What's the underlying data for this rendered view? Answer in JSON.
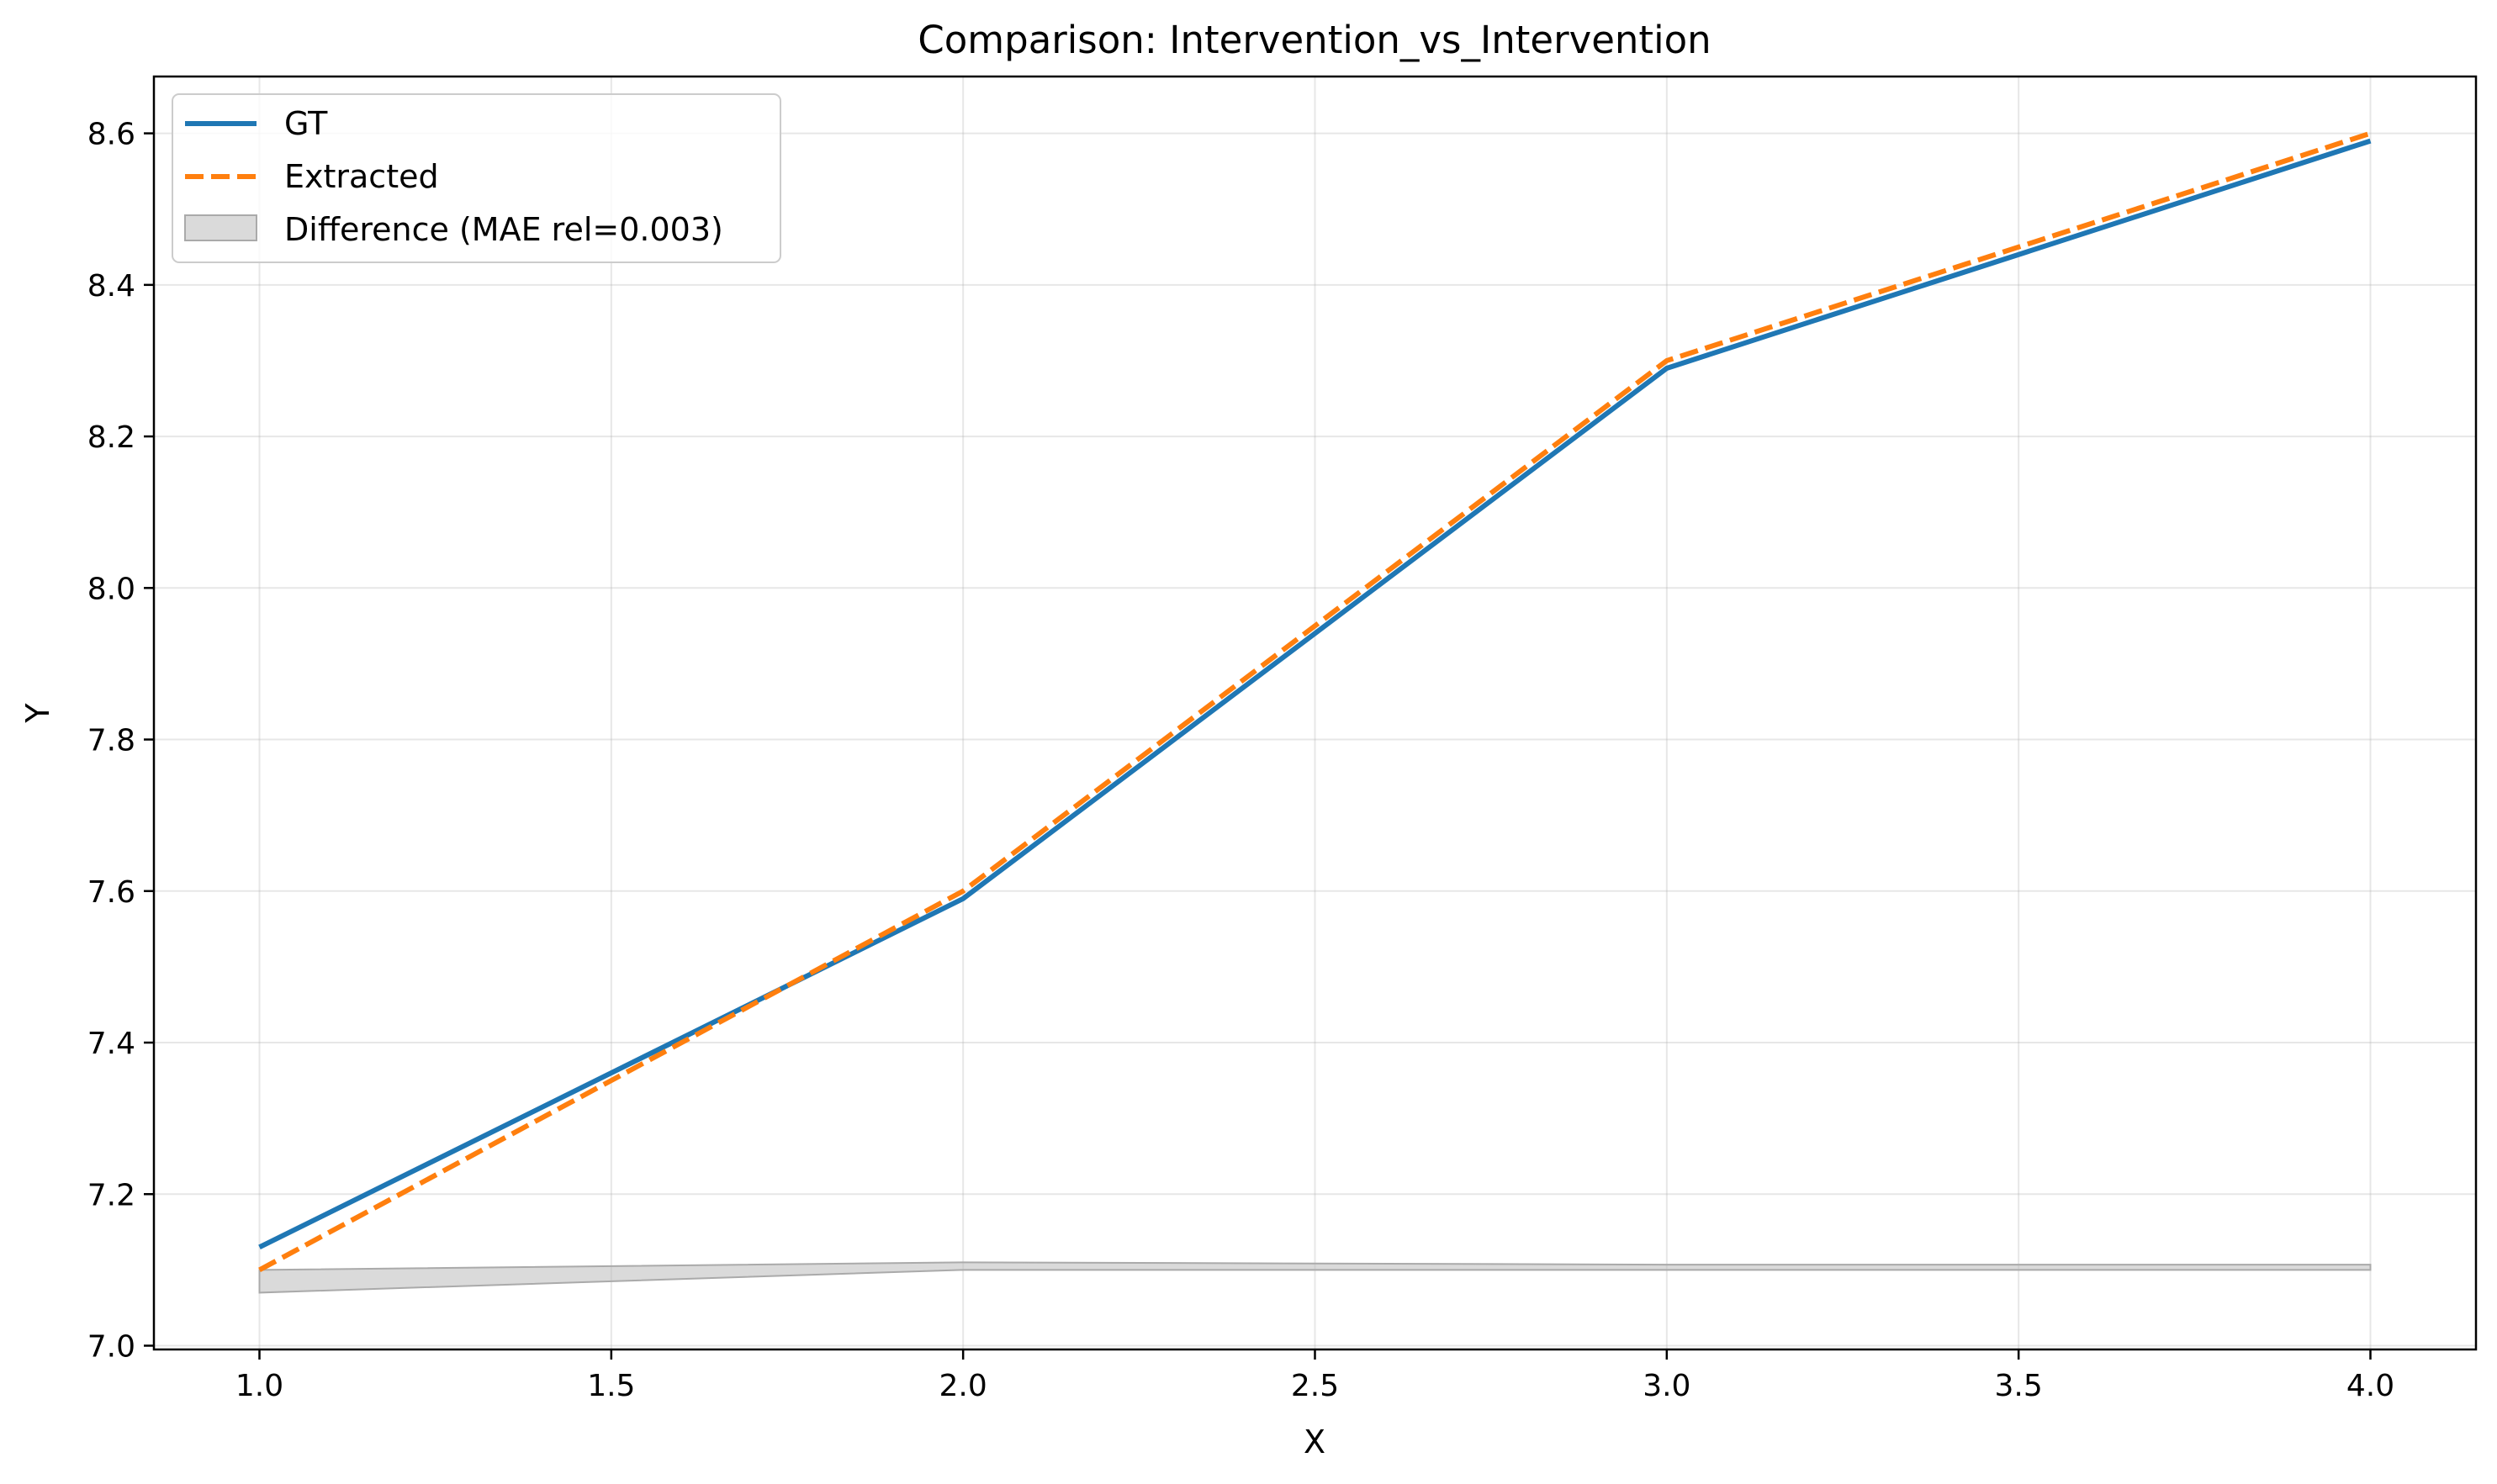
{
  "chart_data": {
    "type": "line",
    "title": "Comparison: Intervention_vs_Intervention",
    "xlabel": "X",
    "ylabel": "Y",
    "xlim": [
      0.85,
      4.15
    ],
    "ylim": [
      6.995,
      8.675
    ],
    "xticks": [
      1.0,
      1.5,
      2.0,
      2.5,
      3.0,
      3.5,
      4.0
    ],
    "xtick_labels": [
      "1.0",
      "1.5",
      "2.0",
      "2.5",
      "3.0",
      "3.5",
      "4.0"
    ],
    "yticks": [
      7.0,
      7.2,
      7.4,
      7.6,
      7.8,
      8.0,
      8.2,
      8.4,
      8.6
    ],
    "ytick_labels": [
      "7.0",
      "7.2",
      "7.4",
      "7.6",
      "7.8",
      "8.0",
      "8.2",
      "8.4",
      "8.6"
    ],
    "grid": true,
    "legend_position": "top-left",
    "x": [
      1.0,
      2.0,
      3.0,
      4.0
    ],
    "series": [
      {
        "name": "GT",
        "values": [
          7.13,
          7.59,
          8.29,
          8.59
        ],
        "color": "#1f77b4",
        "style": "solid"
      },
      {
        "name": "Extracted",
        "values": [
          7.1,
          7.6,
          8.3,
          8.6
        ],
        "color": "#ff7f0e",
        "style": "dashed"
      }
    ],
    "difference_band": {
      "name": "Difference (MAE rel=0.003)",
      "color": "#bbbbbb",
      "lower": [
        7.07,
        7.1,
        7.1,
        7.1
      ],
      "upper": [
        7.1,
        7.11,
        7.107,
        7.107
      ]
    }
  }
}
